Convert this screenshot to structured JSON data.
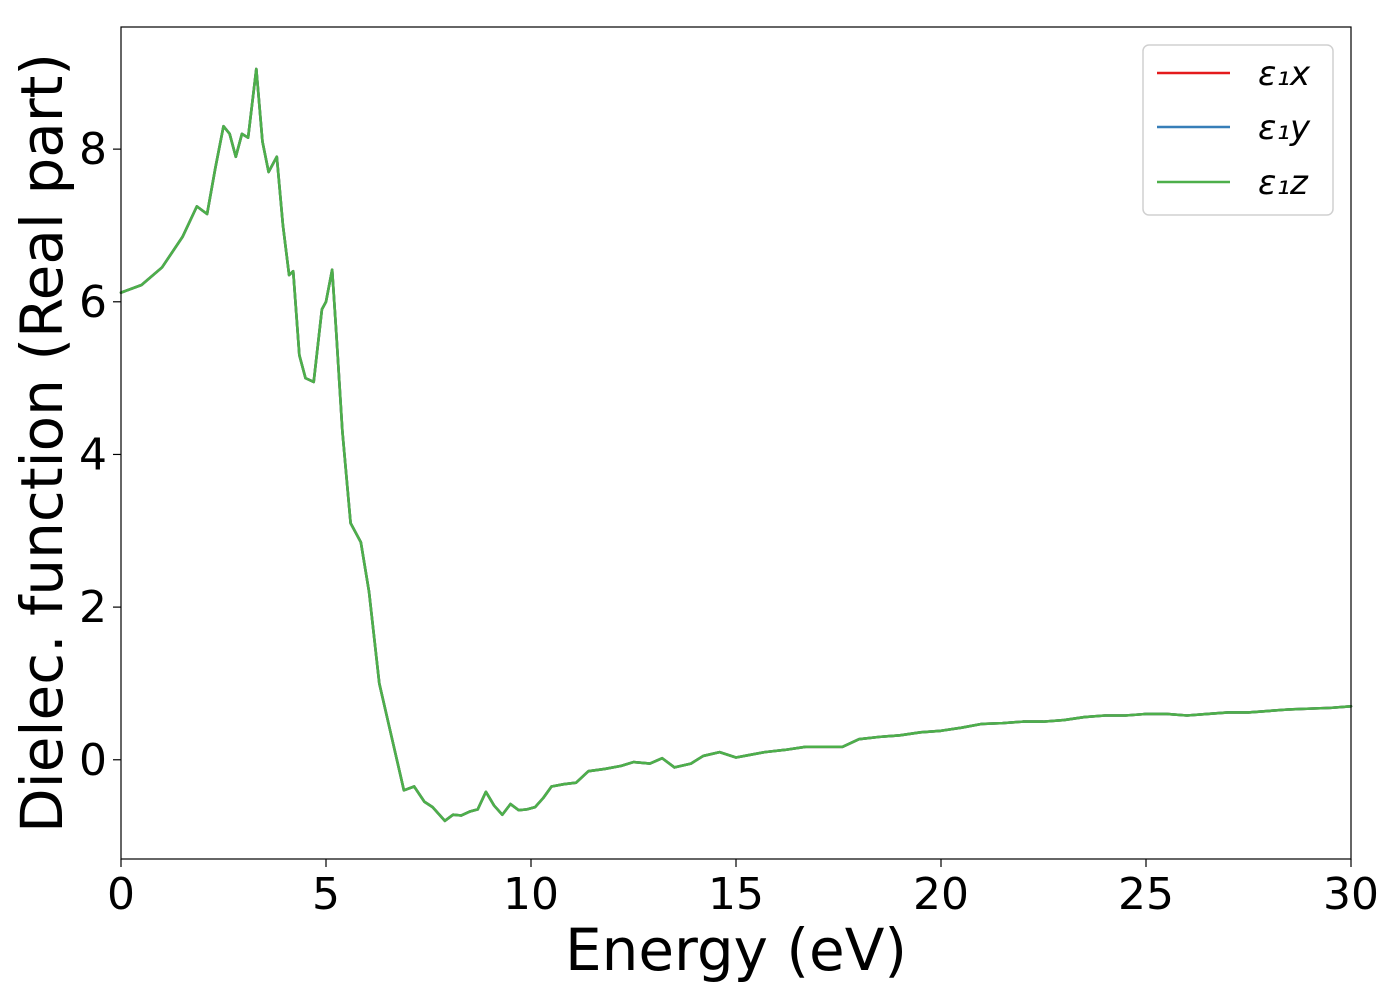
{
  "chart_data": {
    "type": "line",
    "xlabel": "Energy (eV)",
    "ylabel": "Dielec. function (Real part)",
    "xlim": [
      0,
      30
    ],
    "ylim": [
      -1.3,
      9.6
    ],
    "xticks": [
      0,
      5,
      10,
      15,
      20,
      25,
      30
    ],
    "yticks": [
      0,
      2,
      4,
      6,
      8
    ],
    "legend_position": "top-right",
    "series": [
      {
        "name": "ε₁x",
        "color": "#e41a1c",
        "x": [
          0,
          0.5,
          1.0,
          1.5,
          1.85,
          2.1,
          2.3,
          2.5,
          2.65,
          2.8,
          2.95,
          3.1,
          3.3,
          3.45,
          3.6,
          3.8,
          3.95,
          4.1,
          4.2,
          4.35,
          4.5,
          4.7,
          4.9,
          5.0,
          5.15,
          5.25,
          5.4,
          5.6,
          5.85,
          6.05,
          6.3,
          6.6,
          6.9,
          7.15,
          7.4,
          7.6,
          7.9,
          8.1,
          8.3,
          8.5,
          8.7,
          8.9,
          9.1,
          9.3,
          9.5,
          9.7,
          9.9,
          10.1,
          10.3,
          10.5,
          10.8,
          11.1,
          11.4,
          11.8,
          12.2,
          12.5,
          12.9,
          13.2,
          13.5,
          13.9,
          14.2,
          14.6,
          15.0,
          15.3,
          15.7,
          16.2,
          16.7,
          17.2,
          17.6,
          18.0,
          18.5,
          19.0,
          19.5,
          20.0,
          20.5,
          21.0,
          21.5,
          22.0,
          22.5,
          23.0,
          23.5,
          24.0,
          24.5,
          25.0,
          25.5,
          26.0,
          26.5,
          27.0,
          27.5,
          28.0,
          28.5,
          29.0,
          29.5,
          30.0
        ],
        "y": [
          6.12,
          6.22,
          6.45,
          6.85,
          7.25,
          7.15,
          7.75,
          8.3,
          8.2,
          7.9,
          8.2,
          8.15,
          9.05,
          8.1,
          7.7,
          7.9,
          7.0,
          6.35,
          6.4,
          5.3,
          5.0,
          4.95,
          5.9,
          6.0,
          6.42,
          5.6,
          4.3,
          3.1,
          2.85,
          2.2,
          1.0,
          0.3,
          -0.4,
          -0.35,
          -0.55,
          -0.62,
          -0.8,
          -0.72,
          -0.73,
          -0.68,
          -0.65,
          -0.42,
          -0.6,
          -0.72,
          -0.58,
          -0.66,
          -0.65,
          -0.62,
          -0.5,
          -0.35,
          -0.32,
          -0.3,
          -0.15,
          -0.12,
          -0.08,
          -0.03,
          -0.05,
          0.02,
          -0.1,
          -0.05,
          0.05,
          0.1,
          0.03,
          0.06,
          0.1,
          0.13,
          0.17,
          0.17,
          0.17,
          0.27,
          0.3,
          0.32,
          0.36,
          0.38,
          0.42,
          0.47,
          0.48,
          0.5,
          0.5,
          0.52,
          0.56,
          0.58,
          0.58,
          0.6,
          0.6,
          0.58,
          0.6,
          0.62,
          0.62,
          0.64,
          0.66,
          0.67,
          0.68,
          0.7
        ]
      },
      {
        "name": "ε₁y",
        "color": "#377eb8",
        "x": [
          0,
          0.5,
          1.0,
          1.5,
          1.85,
          2.1,
          2.3,
          2.5,
          2.65,
          2.8,
          2.95,
          3.1,
          3.3,
          3.45,
          3.6,
          3.8,
          3.95,
          4.1,
          4.2,
          4.35,
          4.5,
          4.7,
          4.9,
          5.0,
          5.15,
          5.25,
          5.4,
          5.6,
          5.85,
          6.05,
          6.3,
          6.6,
          6.9,
          7.15,
          7.4,
          7.6,
          7.9,
          8.1,
          8.3,
          8.5,
          8.7,
          8.9,
          9.1,
          9.3,
          9.5,
          9.7,
          9.9,
          10.1,
          10.3,
          10.5,
          10.8,
          11.1,
          11.4,
          11.8,
          12.2,
          12.5,
          12.9,
          13.2,
          13.5,
          13.9,
          14.2,
          14.6,
          15.0,
          15.3,
          15.7,
          16.2,
          16.7,
          17.2,
          17.6,
          18.0,
          18.5,
          19.0,
          19.5,
          20.0,
          20.5,
          21.0,
          21.5,
          22.0,
          22.5,
          23.0,
          23.5,
          24.0,
          24.5,
          25.0,
          25.5,
          26.0,
          26.5,
          27.0,
          27.5,
          28.0,
          28.5,
          29.0,
          29.5,
          30.0
        ],
        "y": [
          6.12,
          6.22,
          6.45,
          6.85,
          7.25,
          7.15,
          7.75,
          8.3,
          8.2,
          7.9,
          8.2,
          8.15,
          9.05,
          8.1,
          7.7,
          7.9,
          7.0,
          6.35,
          6.4,
          5.3,
          5.0,
          4.95,
          5.9,
          6.0,
          6.42,
          5.6,
          4.3,
          3.1,
          2.85,
          2.2,
          1.0,
          0.3,
          -0.4,
          -0.35,
          -0.55,
          -0.62,
          -0.8,
          -0.72,
          -0.73,
          -0.68,
          -0.65,
          -0.42,
          -0.6,
          -0.72,
          -0.58,
          -0.66,
          -0.65,
          -0.62,
          -0.5,
          -0.35,
          -0.32,
          -0.3,
          -0.15,
          -0.12,
          -0.08,
          -0.03,
          -0.05,
          0.02,
          -0.1,
          -0.05,
          0.05,
          0.1,
          0.03,
          0.06,
          0.1,
          0.13,
          0.17,
          0.17,
          0.17,
          0.27,
          0.3,
          0.32,
          0.36,
          0.38,
          0.42,
          0.47,
          0.48,
          0.5,
          0.5,
          0.52,
          0.56,
          0.58,
          0.58,
          0.6,
          0.6,
          0.58,
          0.6,
          0.62,
          0.62,
          0.64,
          0.66,
          0.67,
          0.68,
          0.7
        ]
      },
      {
        "name": "ε₁z",
        "color": "#4daf4a",
        "x": [
          0,
          0.5,
          1.0,
          1.5,
          1.85,
          2.1,
          2.3,
          2.5,
          2.65,
          2.8,
          2.95,
          3.1,
          3.3,
          3.45,
          3.6,
          3.8,
          3.95,
          4.1,
          4.2,
          4.35,
          4.5,
          4.7,
          4.9,
          5.0,
          5.15,
          5.25,
          5.4,
          5.6,
          5.85,
          6.05,
          6.3,
          6.6,
          6.9,
          7.15,
          7.4,
          7.6,
          7.9,
          8.1,
          8.3,
          8.5,
          8.7,
          8.9,
          9.1,
          9.3,
          9.5,
          9.7,
          9.9,
          10.1,
          10.3,
          10.5,
          10.8,
          11.1,
          11.4,
          11.8,
          12.2,
          12.5,
          12.9,
          13.2,
          13.5,
          13.9,
          14.2,
          14.6,
          15.0,
          15.3,
          15.7,
          16.2,
          16.7,
          17.2,
          17.6,
          18.0,
          18.5,
          19.0,
          19.5,
          20.0,
          20.5,
          21.0,
          21.5,
          22.0,
          22.5,
          23.0,
          23.5,
          24.0,
          24.5,
          25.0,
          25.5,
          26.0,
          26.5,
          27.0,
          27.5,
          28.0,
          28.5,
          29.0,
          29.5,
          30.0
        ],
        "y": [
          6.12,
          6.22,
          6.45,
          6.85,
          7.25,
          7.15,
          7.75,
          8.3,
          8.2,
          7.9,
          8.2,
          8.15,
          9.05,
          8.1,
          7.7,
          7.9,
          7.0,
          6.35,
          6.4,
          5.3,
          5.0,
          4.95,
          5.9,
          6.0,
          6.42,
          5.6,
          4.3,
          3.1,
          2.85,
          2.2,
          1.0,
          0.3,
          -0.4,
          -0.35,
          -0.55,
          -0.62,
          -0.8,
          -0.72,
          -0.73,
          -0.68,
          -0.65,
          -0.42,
          -0.6,
          -0.72,
          -0.58,
          -0.66,
          -0.65,
          -0.62,
          -0.5,
          -0.35,
          -0.32,
          -0.3,
          -0.15,
          -0.12,
          -0.08,
          -0.03,
          -0.05,
          0.02,
          -0.1,
          -0.05,
          0.05,
          0.1,
          0.03,
          0.06,
          0.1,
          0.13,
          0.17,
          0.17,
          0.17,
          0.27,
          0.3,
          0.32,
          0.36,
          0.38,
          0.42,
          0.47,
          0.48,
          0.5,
          0.5,
          0.52,
          0.56,
          0.58,
          0.58,
          0.6,
          0.6,
          0.58,
          0.6,
          0.62,
          0.62,
          0.64,
          0.66,
          0.67,
          0.68,
          0.7
        ]
      }
    ]
  }
}
